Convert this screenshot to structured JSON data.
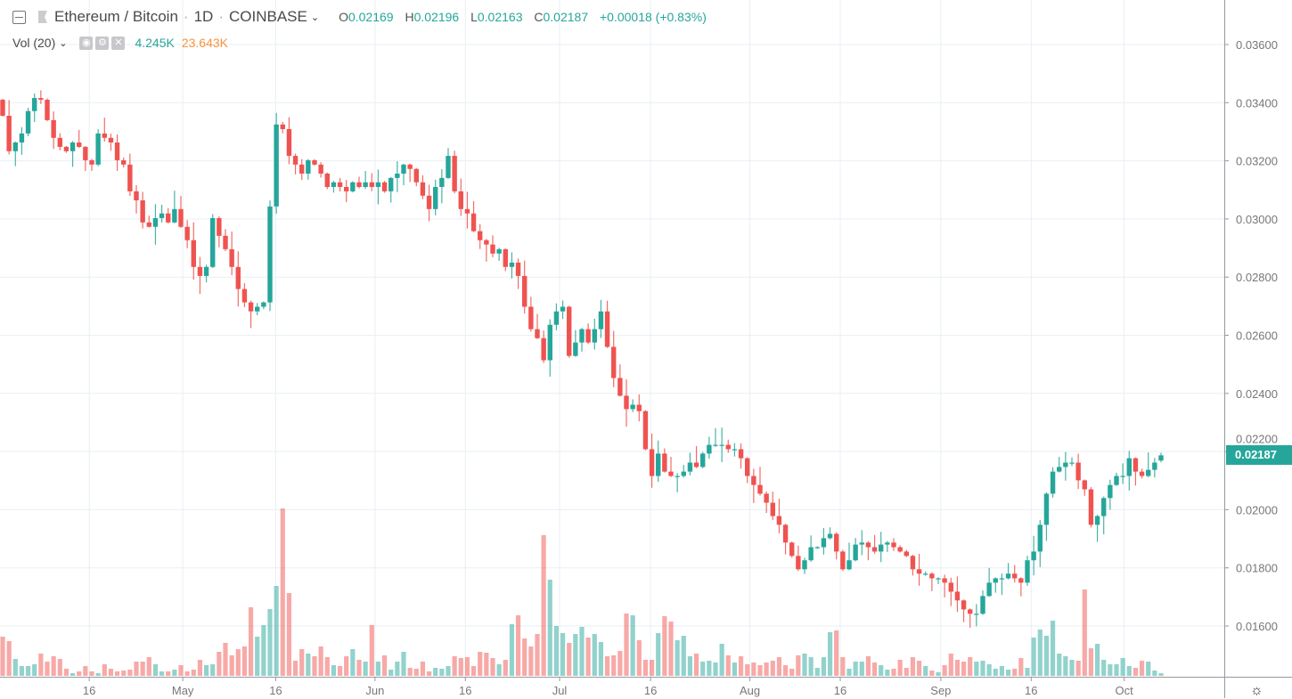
{
  "header": {
    "symbol": "Ethereum / Bitcoin",
    "sep1": "·",
    "interval": "1D",
    "sep2": "·",
    "exchange": "COINBASE",
    "ohlc": {
      "o_label": "O",
      "o": "0.02169",
      "h_label": "H",
      "h": "0.02196",
      "l_label": "L",
      "l": "0.02163",
      "c_label": "C",
      "c": "0.02187",
      "change": "+0.00018 (+0.83%)"
    }
  },
  "volume_legend": {
    "label": "Vol (20)",
    "value": "4.245K",
    "ma": "23.643K",
    "icons": [
      "eye-icon",
      "gear-icon",
      "close-icon"
    ]
  },
  "last_price_label": "0.02187",
  "colors": {
    "up": "#26a69a",
    "down": "#ef5350",
    "grid": "#e9eff4",
    "axis_text": "#777777",
    "ma": "#f7933e"
  },
  "chart_data": {
    "type": "candlestick",
    "title": "Ethereum / Bitcoin · 1D · COINBASE",
    "ylim": [
      0.0146,
      0.0372
    ],
    "y_ticks": [
      "0.03600",
      "0.03400",
      "0.03200",
      "0.03000",
      "0.02800",
      "0.02600",
      "0.02400",
      "0.02200",
      "0.02000",
      "0.01800",
      "0.01600"
    ],
    "x_ticks": [
      {
        "label": "16",
        "index": 13.6
      },
      {
        "label": "May",
        "index": 28.3
      },
      {
        "label": "16",
        "index": 42.9
      },
      {
        "label": "Jun",
        "index": 58.5
      },
      {
        "label": "16",
        "index": 72.7
      },
      {
        "label": "Jul",
        "index": 87.5
      },
      {
        "label": "16",
        "index": 101.8
      },
      {
        "label": "Aug",
        "index": 117.4
      },
      {
        "label": "16",
        "index": 131.6
      },
      {
        "label": "Sep",
        "index": 147.4
      },
      {
        "label": "16",
        "index": 161.6
      },
      {
        "label": "Oct",
        "index": 176.2
      }
    ],
    "first_open": 0.0341,
    "last_candle": {
      "o": 0.02169,
      "h": 0.02196,
      "l": 0.02163,
      "c": 0.02187
    },
    "close": [
      0.03355,
      0.03233,
      0.03263,
      0.03294,
      0.03371,
      0.03416,
      0.0341,
      0.0334,
      0.03279,
      0.03248,
      0.03233,
      0.03263,
      0.03248,
      0.03202,
      0.03187,
      0.03294,
      0.03279,
      0.03263,
      0.03202,
      0.03187,
      0.03095,
      0.03064,
      0.02988,
      0.02973,
      0.03003,
      0.03019,
      0.02988,
      0.03034,
      0.02973,
      0.02927,
      0.02835,
      0.02804,
      0.02835,
      0.03003,
      0.02942,
      0.02896,
      0.02835,
      0.02759,
      0.02713,
      0.02682,
      0.02698,
      0.02713,
      0.03043,
      0.03325,
      0.03309,
      0.03217,
      0.03187,
      0.03156,
      0.03202,
      0.03187,
      0.03156,
      0.0311,
      0.03126,
      0.0311,
      0.03095,
      0.03126,
      0.0311,
      0.03126,
      0.0311,
      0.03126,
      0.03095,
      0.03141,
      0.03156,
      0.03187,
      0.03172,
      0.03126,
      0.0308,
      0.03034,
      0.0311,
      0.03141,
      0.03217,
      0.03095,
      0.03034,
      0.03019,
      0.02958,
      0.02927,
      0.02912,
      0.02881,
      0.02896,
      0.02835,
      0.0285,
      0.02804,
      0.02698,
      0.02621,
      0.0259,
      0.02514,
      0.02636,
      0.02682,
      0.02698,
      0.02529,
      0.02575,
      0.02621,
      0.02575,
      0.02621,
      0.02682,
      0.0256,
      0.02453,
      0.02392,
      0.02346,
      0.02361,
      0.02339,
      0.02208,
      0.02116,
      0.02193,
      0.02131,
      0.02116,
      0.02116,
      0.02131,
      0.02162,
      0.02147,
      0.02193,
      0.02223,
      0.02223,
      0.02223,
      0.02208,
      0.02208,
      0.02177,
      0.02116,
      0.02085,
      0.02055,
      0.02024,
      0.01978,
      0.01948,
      0.01887,
      0.01841,
      0.01795,
      0.01826,
      0.01871,
      0.01871,
      0.01902,
      0.01917,
      0.01856,
      0.01795,
      0.01826,
      0.0188,
      0.01887,
      0.01871,
      0.01856,
      0.0188,
      0.01887,
      0.01871,
      0.01856,
      0.01841,
      0.01795,
      0.0178,
      0.0178,
      0.01764,
      0.01764,
      0.01749,
      0.01718,
      0.01688,
      0.01657,
      0.01642,
      0.01642,
      0.01703,
      0.01749,
      0.01764,
      0.01764,
      0.0178,
      0.01764,
      0.01749,
      0.01826,
      0.01856,
      0.01948,
      0.02055,
      0.02131,
      0.02147,
      0.02162,
      0.02162,
      0.02101,
      0.0207,
      0.01948,
      0.01978,
      0.0204,
      0.02085,
      0.02116,
      0.02116,
      0.02177,
      0.02131,
      0.02116,
      0.02137,
      0.02162,
      0.02187
    ],
    "volume_unit": "K",
    "volume": [
      61.6,
      54.6,
      26.6,
      15.4,
      15.4,
      18.2,
      35,
      22.4,
      30.8,
      26.6,
      11.2,
      4.2,
      7,
      15.4,
      7,
      4.2,
      18.2,
      11.2,
      7,
      8.4,
      9.8,
      22.4,
      22.4,
      29.4,
      18.2,
      7,
      7,
      9.8,
      16.8,
      7,
      9.8,
      25.2,
      16.8,
      18.2,
      37.8,
      51.8,
      32.2,
      42,
      46.2,
      107.8,
      61.6,
      79.8,
      105,
      141.4,
      263.2,
      130.2,
      23.8,
      42,
      35,
      30.8,
      46.2,
      29.4,
      16.8,
      15.4,
      30.8,
      42,
      25.2,
      22.4,
      79.8,
      22.4,
      32.2,
      9.8,
      22.4,
      37.8,
      12.6,
      11.2,
      22.4,
      7,
      12.6,
      11.2,
      15.4,
      30.8,
      28,
      29.4,
      15.4,
      37.8,
      36.4,
      28,
      18.2,
      25.2,
      81.2,
      95.2,
      58.8,
      46.2,
      65.8,
      221.2,
      151.2,
      78.4,
      67.2,
      51.8,
      65.8,
      77,
      60.2,
      65.8,
      53.2,
      30.8,
      32.2,
      39.2,
      98,
      95.2,
      56,
      25.2,
      25.2,
      67.2,
      93.8,
      85.4,
      56,
      63,
      30.8,
      35,
      22.4,
      23.8,
      21,
      50.4,
      32.2,
      21,
      30.8,
      18.2,
      21,
      16.8,
      21,
      23.8,
      29.4,
      16.8,
      11.2,
      32.2,
      35,
      29.4,
      12.6,
      29.4,
      68.6,
      71.4,
      29.4,
      11.2,
      22.4,
      22.4,
      30.8,
      21,
      16.8,
      9.8,
      11.2,
      25.2,
      12.6,
      29.4,
      23.8,
      15.4,
      8.4,
      5.6,
      16.8,
      35,
      25.2,
      22.4,
      29.4,
      22.4,
      23.8,
      18.2,
      11.2,
      15.4,
      9.8,
      11.2,
      28,
      12.6,
      60.2,
      72.8,
      63,
      86.8,
      35,
      30.8,
      25.2,
      23.8,
      135.8,
      43.4,
      50.4,
      25.2,
      18.2,
      18.2,
      28,
      15.4,
      12.6,
      23.8,
      22.4,
      8.4,
      4.245
    ]
  }
}
